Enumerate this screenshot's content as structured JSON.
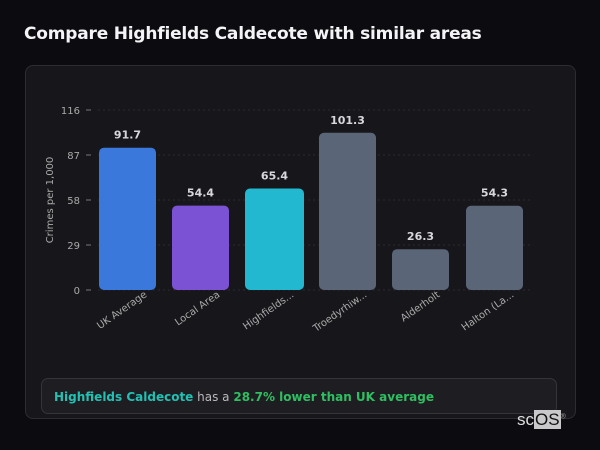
{
  "title": "Compare Highfields Caldecote with similar areas",
  "chart_data": {
    "type": "bar",
    "title": "",
    "xlabel": "",
    "ylabel": "Crimes per 1,000",
    "ylim": [
      0,
      116
    ],
    "yticks": [
      0,
      29,
      58,
      87,
      116
    ],
    "grid": true,
    "categories": [
      "UK Average",
      "Local Area",
      "Highfields...",
      "Troedyrhiw...",
      "Alderholt",
      "Halton (La..."
    ],
    "values": [
      91.7,
      54.4,
      65.4,
      101.3,
      26.3,
      54.3
    ],
    "value_labels": [
      "91.7",
      "54.4",
      "65.4",
      "101.3",
      "26.3",
      "54.3"
    ],
    "colors": [
      "#3a78dc",
      "#7b52d4",
      "#22b8d0",
      "#5a6578",
      "#5a6578",
      "#5a6578"
    ]
  },
  "summary": {
    "area": "Highfields Caldecote",
    "middle": " has a ",
    "result": "28.7% lower than UK average"
  },
  "logo": {
    "a": "sc",
    "b": "OS",
    "mark": "®"
  }
}
